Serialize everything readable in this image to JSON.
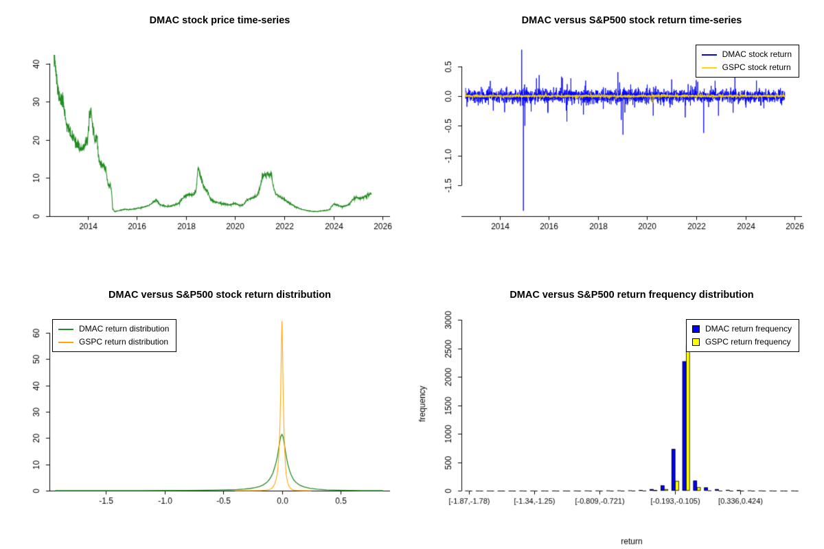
{
  "chart_data": [
    {
      "title": "DMAC stock price time-series",
      "type": "line",
      "xlim": [
        2012.45,
        2026.3
      ],
      "ylim": [
        0,
        45.5
      ],
      "x_ticks": [
        2014,
        2016,
        2018,
        2020,
        2022,
        2024,
        2026
      ],
      "x_tick_labels": [
        "2014",
        "2016",
        "2018",
        "2020",
        "2022",
        "2024",
        "2026"
      ],
      "y_ticks": [
        0,
        10,
        20,
        30,
        40
      ],
      "y_tick_labels": [
        "0",
        "10",
        "20",
        "30",
        "40"
      ],
      "series": [
        {
          "name": "DMAC stock price",
          "type": "anchors-noise",
          "color": "#228B22",
          "line_width": 1.1,
          "noise_sd": 0.035,
          "seed": 11,
          "points": 1500,
          "anchors_x": [
            2012.62,
            2012.7,
            2012.78,
            2012.88,
            2013.0,
            2013.08,
            2013.15,
            2013.25,
            2013.35,
            2013.5,
            2013.6,
            2013.7,
            2013.8,
            2013.9,
            2014.0,
            2014.08,
            2014.13,
            2014.2,
            2014.3,
            2014.38,
            2014.45,
            2014.55,
            2014.65,
            2014.75,
            2014.82,
            2014.9,
            2014.97,
            2015.02,
            2015.1,
            2015.3,
            2015.5,
            2015.7,
            2015.9,
            2016.1,
            2016.3,
            2016.5,
            2016.7,
            2016.8,
            2016.95,
            2017.1,
            2017.3,
            2017.5,
            2017.7,
            2017.85,
            2018.0,
            2018.15,
            2018.3,
            2018.42,
            2018.5,
            2018.58,
            2018.7,
            2018.85,
            2019.0,
            2019.2,
            2019.4,
            2019.6,
            2019.8,
            2020.0,
            2020.2,
            2020.35,
            2020.5,
            2020.7,
            2020.85,
            2021.0,
            2021.1,
            2021.2,
            2021.3,
            2021.4,
            2021.48,
            2021.55,
            2021.65,
            2021.8,
            2021.95,
            2022.1,
            2022.3,
            2022.5,
            2022.7,
            2022.9,
            2023.1,
            2023.3,
            2023.5,
            2023.7,
            2023.85,
            2023.95,
            2024.05,
            2024.2,
            2024.35,
            2024.5,
            2024.65,
            2024.8,
            2024.95,
            2025.1,
            2025.25,
            2025.4,
            2025.55
          ],
          "anchors_y": [
            44,
            39,
            33,
            31,
            30,
            27,
            24,
            22.5,
            21,
            20,
            18.5,
            18,
            17.5,
            18.5,
            20,
            26,
            27.5,
            23,
            20,
            21,
            15,
            13.5,
            13,
            12.5,
            8.5,
            7.8,
            7.2,
            2.0,
            1.2,
            1.5,
            1.8,
            1.7,
            1.9,
            2.1,
            2.4,
            2.8,
            3.8,
            4.3,
            3.0,
            2.7,
            2.5,
            2.9,
            3.3,
            4.6,
            5.3,
            5.8,
            5.4,
            7.0,
            13.0,
            10.5,
            8.0,
            6.8,
            4.5,
            3.7,
            3.4,
            3.1,
            3.0,
            3.4,
            2.8,
            3.1,
            4.3,
            4.8,
            5.2,
            6.8,
            10.5,
            10.8,
            11.2,
            10.6,
            10.9,
            7.8,
            5.8,
            5.2,
            4.6,
            3.9,
            3.1,
            2.3,
            1.8,
            1.5,
            1.3,
            1.2,
            1.35,
            1.5,
            1.7,
            2.9,
            3.2,
            2.7,
            2.5,
            2.7,
            3.1,
            4.6,
            5.0,
            4.6,
            5.1,
            5.6,
            6.0
          ]
        }
      ]
    },
    {
      "title": "DMAC versus S&P500 stock return time-series",
      "type": "line",
      "xlim": [
        2012.45,
        2026.3
      ],
      "ylim": [
        -2.02,
        0.9
      ],
      "x_ticks": [
        2014,
        2016,
        2018,
        2020,
        2022,
        2024,
        2026
      ],
      "x_tick_labels": [
        "2014",
        "2016",
        "2018",
        "2020",
        "2022",
        "2024",
        "2026"
      ],
      "y_ticks": [
        -1.5,
        -1.0,
        -0.5,
        0.0,
        0.5
      ],
      "y_tick_labels": [
        "-1.5",
        "-1.0",
        "-0.5",
        "0.0",
        "0.5"
      ],
      "legend": {
        "swatch": "line",
        "items": [
          {
            "label": "DMAC stock return",
            "color": "#0000ff"
          },
          {
            "label": "GSPC stock return",
            "color": "#ffd700"
          }
        ]
      },
      "series": [
        {
          "name": "DMAC stock return",
          "type": "noise",
          "color": "#0000ff",
          "line_width": 0.9,
          "sd": 0.05,
          "fat_tail_prob": 0.05,
          "fat_tail_mult": 2.8,
          "points": 3200,
          "seed": 7,
          "x_range": [
            2012.62,
            2025.6
          ],
          "spikes_x": [
            2014.9,
            2014.97,
            2015.03,
            2015.5,
            2016.9,
            2017.5,
            2018.95,
            2019.02,
            2020.25,
            2021.0,
            2021.55,
            2022.3,
            2022.9,
            2023.5
          ],
          "spikes_y": [
            0.78,
            -1.93,
            -0.5,
            0.3,
            0.3,
            0.26,
            -0.4,
            -0.65,
            -0.33,
            0.28,
            -0.36,
            -0.62,
            -0.33,
            -0.28
          ]
        },
        {
          "name": "GSPC stock return",
          "type": "noise",
          "color": "#ffd700",
          "line_width": 0.9,
          "sd": 0.011,
          "fat_tail_prob": 0.04,
          "fat_tail_mult": 2.5,
          "points": 3200,
          "seed": 13,
          "x_range": [
            2012.62,
            2025.6
          ],
          "spikes_x": [
            2018.1,
            2020.15,
            2020.2,
            2020.24,
            2022.0
          ],
          "spikes_y": [
            -0.045,
            -0.09,
            0.08,
            -0.12,
            -0.05
          ]
        }
      ]
    },
    {
      "title": "DMAC versus S&P500 stock return distribution",
      "type": "density",
      "xlim": [
        -1.98,
        0.92
      ],
      "ylim": [
        0,
        66
      ],
      "x_ticks": [
        -1.5,
        -1.0,
        -0.5,
        0.0,
        0.5
      ],
      "x_tick_labels": [
        "-1.5",
        "-1.0",
        "-0.5",
        "0.0",
        "0.5"
      ],
      "y_ticks": [
        0,
        10,
        20,
        30,
        40,
        50,
        60
      ],
      "y_tick_labels": [
        "0",
        "10",
        "20",
        "30",
        "40",
        "50",
        "60"
      ],
      "legend": {
        "swatch": "line",
        "items": [
          {
            "label": "DMAC return distribution",
            "color": "#228B22"
          },
          {
            "label": "GSPC return distribution",
            "color": "#ffa500"
          }
        ]
      },
      "series": [
        {
          "name": "DMAC return distribution",
          "type": "xy",
          "color": "#228B22",
          "line_width": 1.3,
          "x": [
            -1.93,
            -1.5,
            -1.2,
            -1.0,
            -0.8,
            -0.65,
            -0.55,
            -0.45,
            -0.38,
            -0.32,
            -0.27,
            -0.23,
            -0.19,
            -0.16,
            -0.13,
            -0.11,
            -0.09,
            -0.075,
            -0.06,
            -0.05,
            -0.04,
            -0.03,
            -0.02,
            -0.01,
            0,
            0.01,
            0.02,
            0.03,
            0.04,
            0.05,
            0.065,
            0.08,
            0.1,
            0.12,
            0.15,
            0.19,
            0.24,
            0.3,
            0.38,
            0.48,
            0.58,
            0.68,
            0.78,
            0.86
          ],
          "y": [
            0.02,
            0.03,
            0.04,
            0.06,
            0.1,
            0.15,
            0.22,
            0.33,
            0.45,
            0.62,
            0.85,
            1.15,
            1.6,
            2.2,
            3.1,
            4.1,
            5.5,
            7.0,
            9.2,
            10.8,
            12.8,
            15.5,
            18.3,
            20.6,
            21.4,
            20.4,
            17.8,
            14.8,
            12.2,
            10.0,
            7.6,
            5.8,
            4.1,
            3.1,
            2.1,
            1.4,
            0.9,
            0.55,
            0.3,
            0.16,
            0.09,
            0.05,
            0.03,
            0.02
          ]
        },
        {
          "name": "GSPC return distribution",
          "type": "xy",
          "color": "#ffa500",
          "line_width": 1.1,
          "x": [
            -0.4,
            -0.25,
            -0.18,
            -0.14,
            -0.11,
            -0.09,
            -0.075,
            -0.06,
            -0.05,
            -0.042,
            -0.035,
            -0.03,
            -0.025,
            -0.02,
            -0.016,
            -0.012,
            -0.008,
            -0.004,
            0,
            0.004,
            0.008,
            0.012,
            0.016,
            0.02,
            0.025,
            0.03,
            0.035,
            0.042,
            0.05,
            0.06,
            0.075,
            0.09,
            0.11,
            0.14,
            0.18,
            0.25
          ],
          "y": [
            0.01,
            0.03,
            0.08,
            0.18,
            0.4,
            0.8,
            1.5,
            2.8,
            4.2,
            6.0,
            8.5,
            11.5,
            15.5,
            21,
            27,
            35,
            46,
            57,
            64.5,
            56,
            44,
            33,
            25,
            19,
            13.5,
            9.5,
            6.5,
            4.5,
            2.9,
            1.7,
            0.8,
            0.35,
            0.15,
            0.06,
            0.02,
            0.01
          ]
        }
      ]
    },
    {
      "title": "DMAC versus S&P500 return frequency distribution",
      "type": "bar",
      "xlabel": "return",
      "ylabel": "frequency",
      "ylim": [
        0,
        3050
      ],
      "y_ticks": [
        0,
        500,
        1000,
        1500,
        2000,
        2500,
        3000
      ],
      "y_tick_labels": [
        "0",
        "500",
        "1000",
        "1500",
        "2000",
        "2500",
        "3000"
      ],
      "x_tick_bins": [
        0,
        6,
        12,
        19,
        25
      ],
      "x_tick_labels": [
        "[-1.87,-1.78)",
        "[-1.34,-1.25)",
        "[-0.809,-0.721)",
        "[-0.193,-0.105)",
        "[0.336,0.424)"
      ],
      "legend": {
        "swatch": "box",
        "items": [
          {
            "label": "DMAC return frequency",
            "color": "#0000ff"
          },
          {
            "label": "GSPC return frequency",
            "color": "#ffff00"
          }
        ]
      },
      "bins": {
        "dmac": [
          2,
          1,
          1,
          0,
          1,
          2,
          2,
          1,
          2,
          1,
          2,
          3,
          3,
          4,
          5,
          6,
          10,
          25,
          90,
          730,
          2270,
          175,
          55,
          25,
          12,
          8,
          5,
          3,
          2,
          1,
          2
        ],
        "gspc": [
          0,
          0,
          0,
          0,
          0,
          0,
          0,
          0,
          0,
          0,
          0,
          0,
          0,
          0,
          0,
          1,
          2,
          8,
          25,
          170,
          2560,
          60,
          5,
          1,
          0,
          0,
          0,
          0,
          0,
          0,
          0
        ]
      }
    }
  ]
}
